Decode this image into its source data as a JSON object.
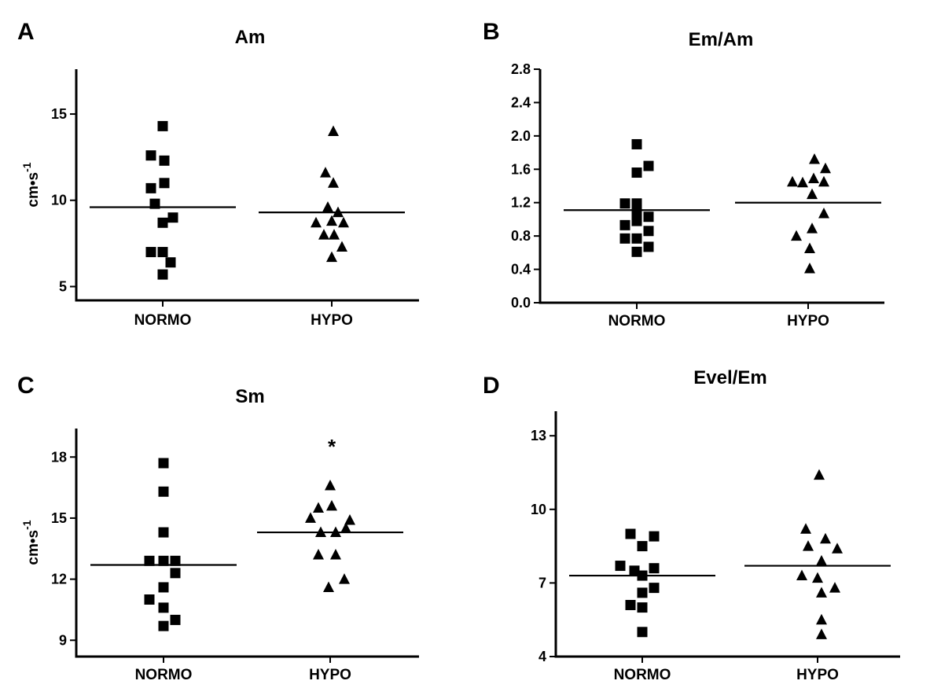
{
  "chart_data": [
    {
      "id": "A",
      "panel_label": "A",
      "type": "scatter",
      "title": "Am",
      "ylabel": "cm•s",
      "ylabel_sup": "-1",
      "categories": [
        "NORMO",
        "HYPO"
      ],
      "ylim": [
        4.2,
        17.6
      ],
      "yticks": [
        5,
        10,
        15
      ],
      "ytick_labels": [
        "5",
        "10",
        "15"
      ],
      "annotation": null,
      "series": [
        {
          "name": "NORMO",
          "marker": "square",
          "mean": 9.6,
          "points": [
            [
              0.0,
              14.3
            ],
            [
              -0.15,
              12.6
            ],
            [
              0.02,
              12.3
            ],
            [
              -0.15,
              10.7
            ],
            [
              0.02,
              11.0
            ],
            [
              -0.1,
              9.8
            ],
            [
              0.13,
              9.0
            ],
            [
              0.0,
              8.7
            ],
            [
              -0.15,
              7.0
            ],
            [
              0.0,
              7.0
            ],
            [
              0.1,
              6.4
            ],
            [
              0.0,
              5.7
            ]
          ]
        },
        {
          "name": "HYPO",
          "marker": "triangle",
          "mean": 9.3,
          "points": [
            [
              0.02,
              14.0
            ],
            [
              -0.08,
              11.6
            ],
            [
              0.02,
              11.0
            ],
            [
              -0.05,
              9.6
            ],
            [
              0.08,
              9.3
            ],
            [
              -0.2,
              8.7
            ],
            [
              0.0,
              8.8
            ],
            [
              0.15,
              8.7
            ],
            [
              -0.1,
              8.0
            ],
            [
              0.03,
              8.0
            ],
            [
              0.13,
              7.3
            ],
            [
              0.0,
              6.7
            ]
          ]
        }
      ]
    },
    {
      "id": "B",
      "panel_label": "B",
      "type": "scatter",
      "title": "Em/Am",
      "ylabel": "",
      "ylabel_sup": "",
      "categories": [
        "NORMO",
        "HYPO"
      ],
      "ylim": [
        0.0,
        2.8
      ],
      "yticks": [
        0.0,
        0.4,
        0.8,
        1.2,
        1.6,
        2.0,
        2.4,
        2.8
      ],
      "ytick_labels": [
        "0.0",
        "0.4",
        "0.8",
        "1.2",
        "1.6",
        "2.0",
        "2.4",
        "2.8"
      ],
      "annotation": null,
      "series": [
        {
          "name": "NORMO",
          "marker": "square",
          "mean": 1.11,
          "points": [
            [
              0.0,
              1.9
            ],
            [
              0.15,
              1.64
            ],
            [
              0.0,
              1.56
            ],
            [
              -0.15,
              1.19
            ],
            [
              0.0,
              1.19
            ],
            [
              0.0,
              1.09
            ],
            [
              0.15,
              1.03
            ],
            [
              -0.15,
              0.93
            ],
            [
              0.0,
              0.98
            ],
            [
              0.15,
              0.86
            ],
            [
              -0.15,
              0.77
            ],
            [
              0.0,
              0.77
            ],
            [
              0.15,
              0.67
            ],
            [
              0.0,
              0.61
            ]
          ]
        },
        {
          "name": "HYPO",
          "marker": "triangle",
          "mean": 1.2,
          "points": [
            [
              0.08,
              1.72
            ],
            [
              0.22,
              1.61
            ],
            [
              -0.2,
              1.45
            ],
            [
              -0.07,
              1.44
            ],
            [
              0.07,
              1.49
            ],
            [
              0.2,
              1.45
            ],
            [
              0.05,
              1.3
            ],
            [
              0.2,
              1.07
            ],
            [
              -0.15,
              0.8
            ],
            [
              0.05,
              0.89
            ],
            [
              0.02,
              0.65
            ],
            [
              0.02,
              0.41
            ]
          ]
        }
      ]
    },
    {
      "id": "C",
      "panel_label": "C",
      "type": "scatter",
      "title": "Sm",
      "ylabel": "cm•s",
      "ylabel_sup": "-1",
      "categories": [
        "NORMO",
        "HYPO"
      ],
      "ylim": [
        8.2,
        19.4
      ],
      "yticks": [
        9,
        12,
        15,
        18
      ],
      "ytick_labels": [
        "9",
        "12",
        "15",
        "18"
      ],
      "annotation": "*",
      "annotation_value": 18.7,
      "series": [
        {
          "name": "NORMO",
          "marker": "square",
          "mean": 12.7,
          "points": [
            [
              0.0,
              17.7
            ],
            [
              0.0,
              16.3
            ],
            [
              0.0,
              14.3
            ],
            [
              -0.18,
              12.9
            ],
            [
              0.0,
              12.9
            ],
            [
              0.15,
              12.9
            ],
            [
              0.15,
              12.3
            ],
            [
              0.0,
              11.6
            ],
            [
              -0.18,
              11.0
            ],
            [
              0.0,
              10.6
            ],
            [
              0.15,
              10.0
            ],
            [
              0.0,
              9.7
            ]
          ]
        },
        {
          "name": "HYPO",
          "marker": "triangle",
          "mean": 14.3,
          "points": [
            [
              0.0,
              16.6
            ],
            [
              -0.15,
              15.5
            ],
            [
              0.02,
              15.6
            ],
            [
              -0.25,
              15.0
            ],
            [
              0.25,
              14.9
            ],
            [
              -0.12,
              14.3
            ],
            [
              0.07,
              14.3
            ],
            [
              0.2,
              14.5
            ],
            [
              -0.15,
              13.2
            ],
            [
              0.07,
              13.2
            ],
            [
              -0.02,
              11.6
            ],
            [
              0.18,
              12.0
            ]
          ]
        }
      ]
    },
    {
      "id": "D",
      "panel_label": "D",
      "type": "scatter",
      "title": "Evel/Em",
      "ylabel": "",
      "ylabel_sup": "",
      "categories": [
        "NORMO",
        "HYPO"
      ],
      "ylim": [
        4.0,
        14.0
      ],
      "yticks": [
        4,
        7,
        10,
        13
      ],
      "ytick_labels": [
        "4",
        "7",
        "10",
        "13"
      ],
      "annotation": null,
      "series": [
        {
          "name": "NORMO",
          "marker": "square",
          "mean": 7.3,
          "points": [
            [
              -0.15,
              9.0
            ],
            [
              0.15,
              8.9
            ],
            [
              0.0,
              8.5
            ],
            [
              -0.28,
              7.7
            ],
            [
              -0.1,
              7.5
            ],
            [
              0.15,
              7.6
            ],
            [
              0.0,
              7.3
            ],
            [
              0.15,
              6.8
            ],
            [
              0.0,
              6.6
            ],
            [
              -0.15,
              6.1
            ],
            [
              0.0,
              6.0
            ],
            [
              0.0,
              5.0
            ]
          ]
        },
        {
          "name": "HYPO",
          "marker": "triangle",
          "mean": 7.7,
          "points": [
            [
              0.02,
              11.4
            ],
            [
              -0.15,
              9.2
            ],
            [
              0.1,
              8.8
            ],
            [
              -0.12,
              8.5
            ],
            [
              0.25,
              8.4
            ],
            [
              0.05,
              7.9
            ],
            [
              -0.2,
              7.3
            ],
            [
              0.0,
              7.2
            ],
            [
              0.22,
              6.8
            ],
            [
              0.05,
              6.6
            ],
            [
              0.05,
              5.5
            ],
            [
              0.05,
              4.9
            ]
          ]
        }
      ]
    }
  ]
}
